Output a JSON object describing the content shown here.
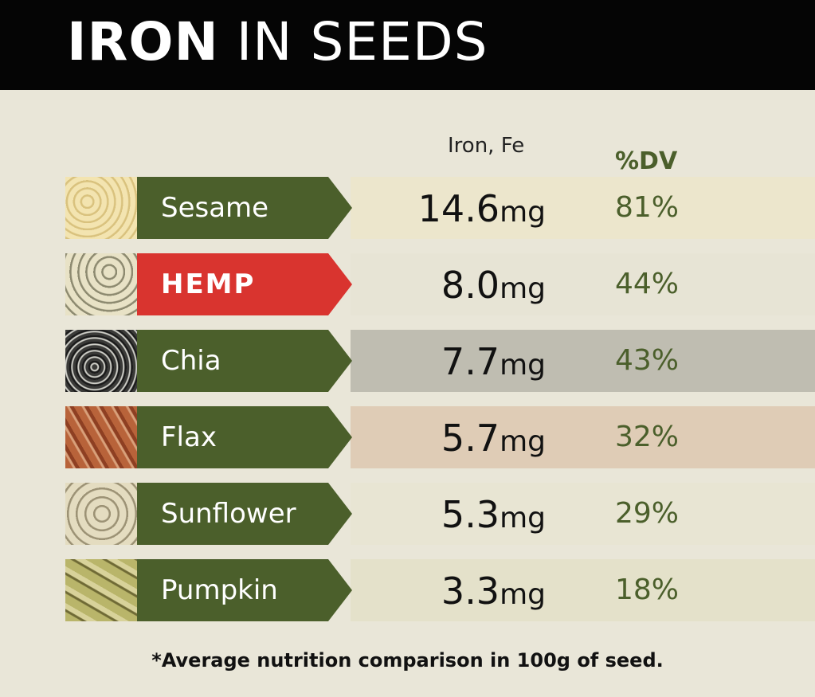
{
  "header": {
    "title_bold": "IRON",
    "title_rest": "IN SEEDS"
  },
  "columns": {
    "amount": "Iron, Fe",
    "dv": "%DV"
  },
  "rows": [
    {
      "name": "Sesame",
      "amount": "14.6",
      "unit": "mg",
      "dv": "81%",
      "color": "#4b5f2b"
    },
    {
      "name": "HEMP",
      "amount": "8.0",
      "unit": "mg",
      "dv": "44%",
      "color": "#d9342f"
    },
    {
      "name": "Chia",
      "amount": "7.7",
      "unit": "mg",
      "dv": "43%",
      "color": "#4b5f2b"
    },
    {
      "name": "Flax",
      "amount": "5.7",
      "unit": "mg",
      "dv": "32%",
      "color": "#4b5f2b"
    },
    {
      "name": "Sunflower",
      "amount": "5.3",
      "unit": "mg",
      "dv": "29%",
      "color": "#4b5f2b"
    },
    {
      "name": "Pumpkin",
      "amount": "3.3",
      "unit": "mg",
      "dv": "18%",
      "color": "#4b5f2b"
    }
  ],
  "footnote": "*Average nutrition comparison in 100g of seed."
}
